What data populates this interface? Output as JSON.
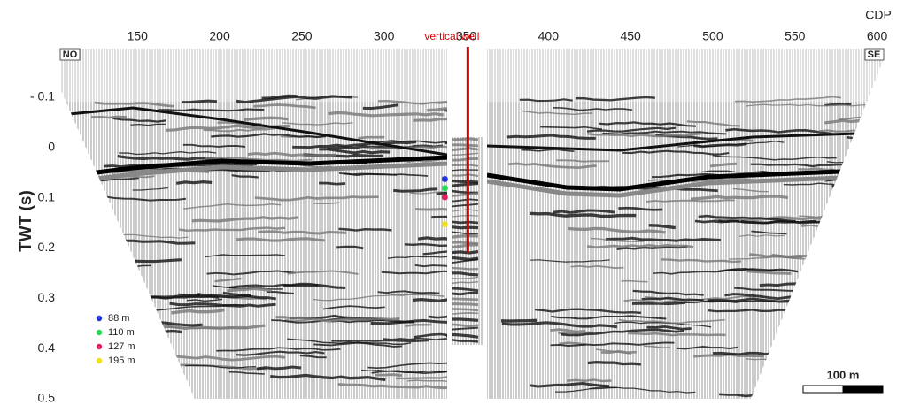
{
  "chart_data": {
    "type": "scatter",
    "x_label": "CDP",
    "y_label": "TWT (s)",
    "x_axis_position": "top",
    "y_inverted": true,
    "xlim": [
      103,
      604
    ],
    "ylim": [
      -0.2,
      0.5
    ],
    "xticks": [
      150,
      200,
      250,
      300,
      350,
      400,
      450,
      500,
      550,
      600
    ],
    "yticks": [
      {
        "value": -0.1,
        "label": "- 0.1"
      },
      0,
      0.1,
      0.2,
      0.3,
      0.4,
      0.5
    ],
    "annotations": {
      "left_end": "NO",
      "right_end": "SE",
      "scale_bar": "100 m"
    },
    "well": {
      "label": "vertical well",
      "x": 351,
      "y": [
        -0.2,
        0.21
      ],
      "color": "#d40000"
    },
    "legend": "lower left",
    "series": [
      {
        "name": "88 m",
        "color": "#2233dd",
        "x": [
          337
        ],
        "values": [
          0.063
        ]
      },
      {
        "name": "110 m",
        "color": "#22dd55",
        "x": [
          337
        ],
        "values": [
          0.081
        ]
      },
      {
        "name": "127 m",
        "color": "#e0205a",
        "x": [
          337
        ],
        "values": [
          0.099
        ]
      },
      {
        "name": "195 m",
        "color": "#f0e020",
        "x": [
          337
        ],
        "values": [
          0.153
        ]
      }
    ]
  }
}
